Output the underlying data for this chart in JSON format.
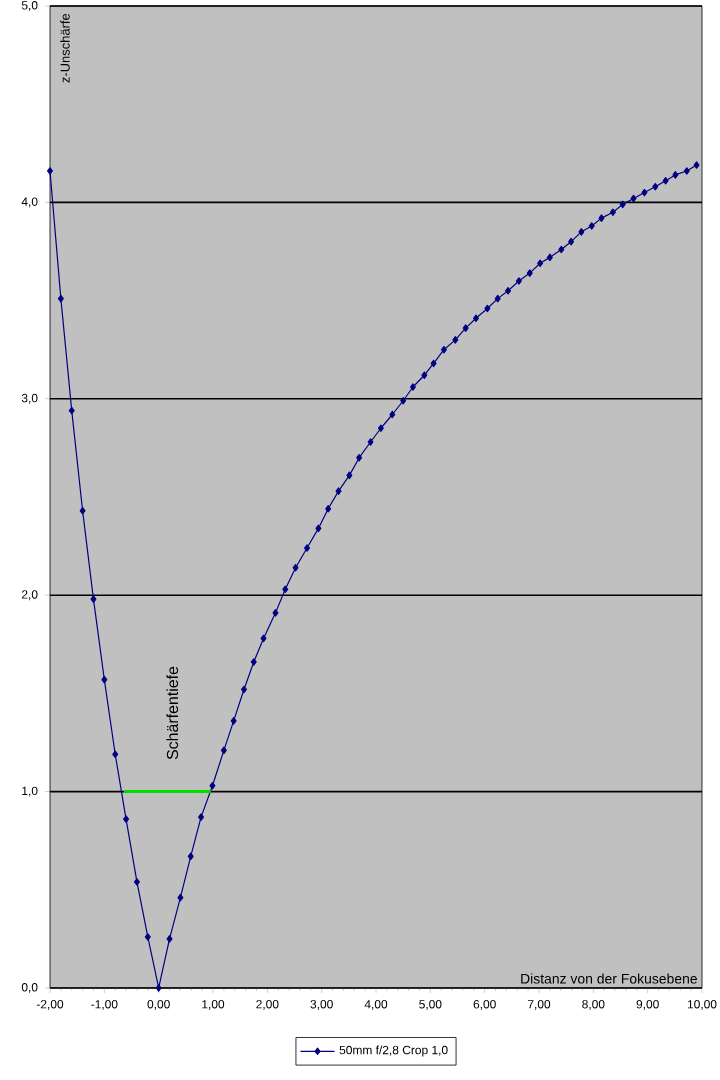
{
  "chart_data": {
    "type": "line",
    "xlabel": "Distanz von der Fokusebene",
    "ylabel": "z-Unschärfe",
    "xlim": [
      -2,
      10
    ],
    "ylim": [
      0,
      5
    ],
    "xticks": [
      {
        "value": -2,
        "label": "-2,00"
      },
      {
        "value": -1,
        "label": "-1,00"
      },
      {
        "value": 0,
        "label": "0,00"
      },
      {
        "value": 1,
        "label": "1,00"
      },
      {
        "value": 2,
        "label": "2,00"
      },
      {
        "value": 3,
        "label": "3,00"
      },
      {
        "value": 4,
        "label": "4,00"
      },
      {
        "value": 5,
        "label": "5,00"
      },
      {
        "value": 6,
        "label": "6,00"
      },
      {
        "value": 7,
        "label": "7,00"
      },
      {
        "value": 8,
        "label": "8,00"
      },
      {
        "value": 9,
        "label": "9,00"
      },
      {
        "value": 10,
        "label": "10,00"
      }
    ],
    "yticks": [
      {
        "value": 0,
        "label": "0,0"
      },
      {
        "value": 1,
        "label": "1,0"
      },
      {
        "value": 2,
        "label": "2,0"
      },
      {
        "value": 3,
        "label": "3,0"
      },
      {
        "value": 4,
        "label": "4,0"
      },
      {
        "value": 5,
        "label": "5,0"
      }
    ],
    "grid": "y",
    "legend": "bottom",
    "marker": "diamond",
    "series": [
      {
        "name": "50mm f/2,8  Crop 1,0",
        "color": "#000080",
        "x": [
          -2.0,
          -1.8,
          -1.6,
          -1.4,
          -1.2,
          -1.0,
          -0.8,
          -0.6,
          -0.4,
          -0.2,
          0.0,
          0.2,
          0.4,
          0.59,
          0.78,
          0.99,
          1.2,
          1.38,
          1.57,
          1.75,
          1.93,
          2.15,
          2.33,
          2.52,
          2.73,
          2.94,
          3.12,
          3.31,
          3.51,
          3.69,
          3.9,
          4.09,
          4.3,
          4.5,
          4.68,
          4.89,
          5.06,
          5.25,
          5.46,
          5.65,
          5.84,
          6.05,
          6.24,
          6.43,
          6.63,
          6.83,
          7.02,
          7.2,
          7.41,
          7.59,
          7.78,
          7.97,
          8.15,
          8.36,
          8.54,
          8.74,
          8.94,
          9.14,
          9.33,
          9.51,
          9.72,
          9.9
        ],
        "values": [
          4.16,
          3.51,
          2.94,
          2.43,
          1.98,
          1.57,
          1.19,
          0.86,
          0.54,
          0.26,
          0.0,
          0.25,
          0.46,
          0.67,
          0.87,
          1.03,
          1.21,
          1.36,
          1.52,
          1.66,
          1.78,
          1.91,
          2.03,
          2.14,
          2.24,
          2.34,
          2.44,
          2.53,
          2.61,
          2.7,
          2.78,
          2.85,
          2.92,
          2.99,
          3.06,
          3.12,
          3.18,
          3.25,
          3.3,
          3.36,
          3.41,
          3.46,
          3.51,
          3.55,
          3.6,
          3.64,
          3.69,
          3.72,
          3.76,
          3.8,
          3.85,
          3.88,
          3.92,
          3.95,
          3.99,
          4.02,
          4.05,
          4.08,
          4.11,
          4.14,
          4.16,
          4.19
        ]
      },
      {
        "color": "#00e000",
        "marker": "none",
        "x": [
          -0.64,
          0.96
        ],
        "values": [
          1.0,
          1.0
        ]
      }
    ],
    "annotations": [
      "Schärfentiefe"
    ]
  }
}
